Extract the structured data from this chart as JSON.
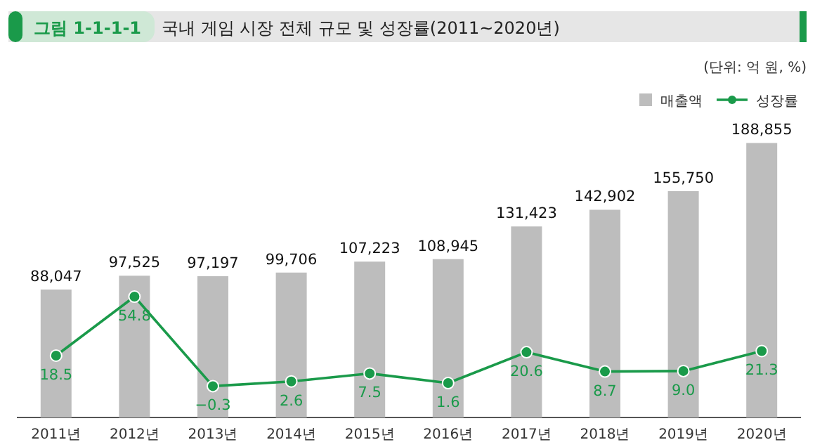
{
  "chart_data": {
    "type": "bar",
    "title": "국내 게임 시장 전체 규모 및 성장률(2011~2020년)",
    "annotations": [
      "그림 1-1-1-1",
      "(단위: 억 원, %)"
    ],
    "categories": [
      "2011년",
      "2012년",
      "2013년",
      "2014년",
      "2015년",
      "2016년",
      "2017년",
      "2018년",
      "2019년",
      "2020년"
    ],
    "series": [
      {
        "name": "매출액",
        "color": "#bdbdbd",
        "values": [
          88047,
          97525,
          97197,
          99706,
          107223,
          108945,
          131423,
          142902,
          155750,
          188855
        ],
        "value_labels": [
          "88,047",
          "97,525",
          "97,197",
          "99,706",
          "107,223",
          "108,945",
          "131,423",
          "142,902",
          "155,750",
          "188,855"
        ]
      },
      {
        "name": "성장률",
        "type": "line",
        "axis": "y2",
        "color": "#1a9a4a",
        "values": [
          18.5,
          54.8,
          -0.3,
          2.6,
          7.5,
          1.6,
          20.6,
          8.7,
          9.0,
          21.3
        ],
        "value_labels": [
          "18.5",
          "54.8",
          "−0.3",
          "2.6",
          "7.5",
          "1.6",
          "20.6",
          "8.7",
          "9.0",
          "21.3"
        ]
      }
    ],
    "tick_labels": "x",
    "legend": "top right",
    "marker": "circle"
  }
}
